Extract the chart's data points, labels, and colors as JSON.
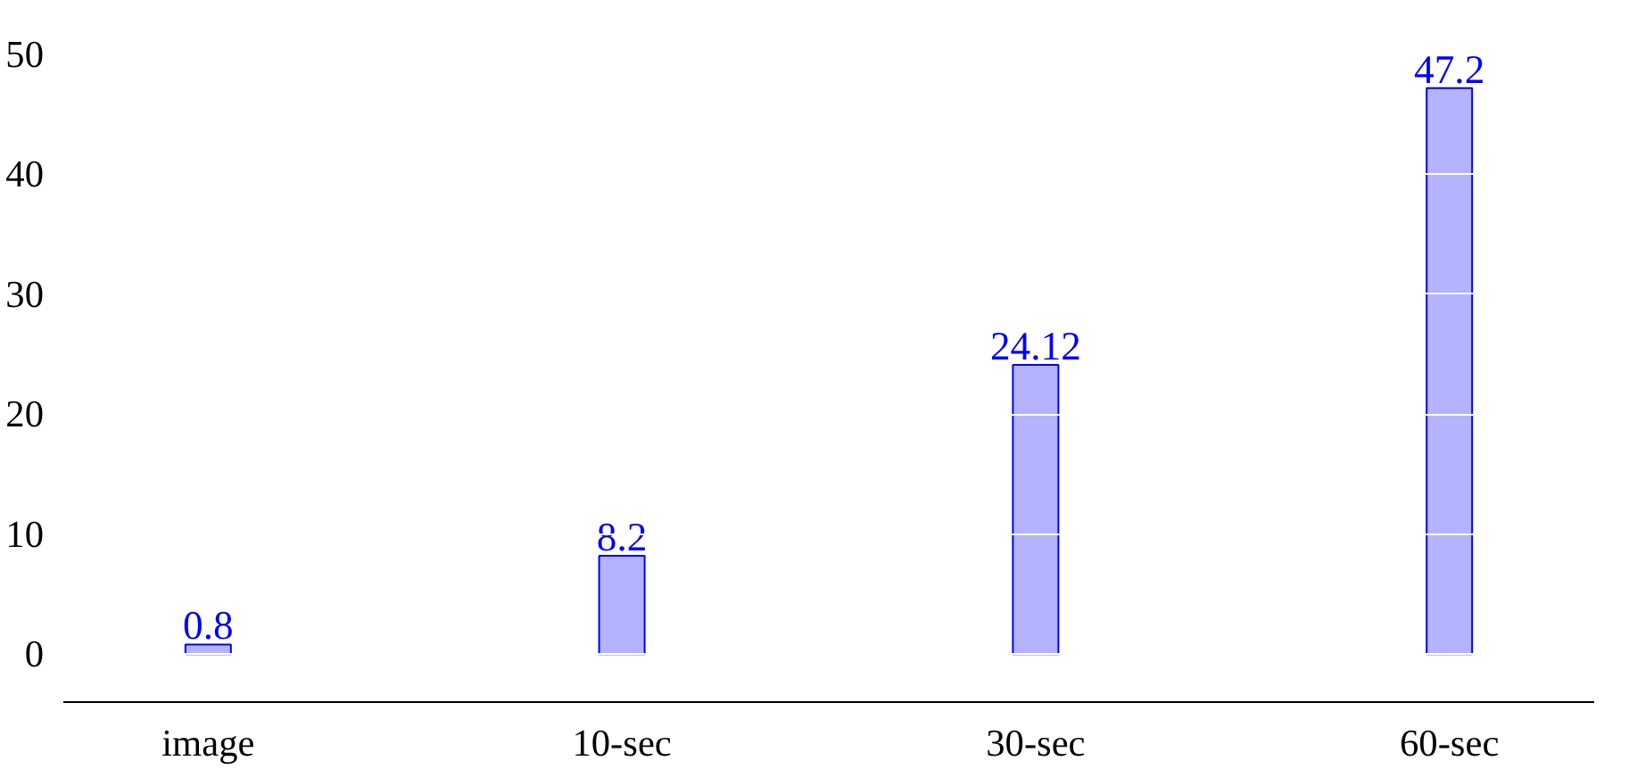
{
  "chart_data": {
    "type": "bar",
    "categories": [
      "image",
      "10-sec",
      "30-sec",
      "60-sec"
    ],
    "values": [
      0.8,
      8.2,
      24.12,
      47.2
    ],
    "color": "#b3b3ff",
    "ylim": [
      -4,
      50
    ],
    "yticks": [
      0,
      10,
      20,
      30,
      40,
      50
    ],
    "grid": "y",
    "data_labels": true
  }
}
